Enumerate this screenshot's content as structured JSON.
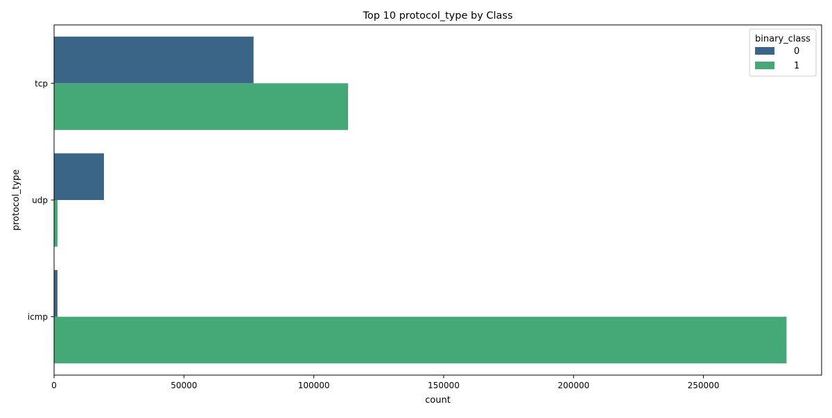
{
  "chart_data": {
    "type": "bar",
    "orientation": "horizontal",
    "title": "Top 10 protocol_type by Class",
    "xlabel": "count",
    "ylabel": "protocol_type",
    "categories": [
      "tcp",
      "udp",
      "icmp"
    ],
    "series": [
      {
        "name": "0",
        "color": "#3b6586",
        "values": [
          76800,
          19200,
          1300
        ]
      },
      {
        "name": "1",
        "color": "#44a877",
        "values": [
          113200,
          1300,
          282000
        ]
      }
    ],
    "xlim": [
      0,
      295500
    ],
    "xticks": [
      0,
      50000,
      100000,
      150000,
      200000,
      250000
    ],
    "legend": {
      "title": "binary_class",
      "placement": "top-right"
    },
    "grid": false
  }
}
